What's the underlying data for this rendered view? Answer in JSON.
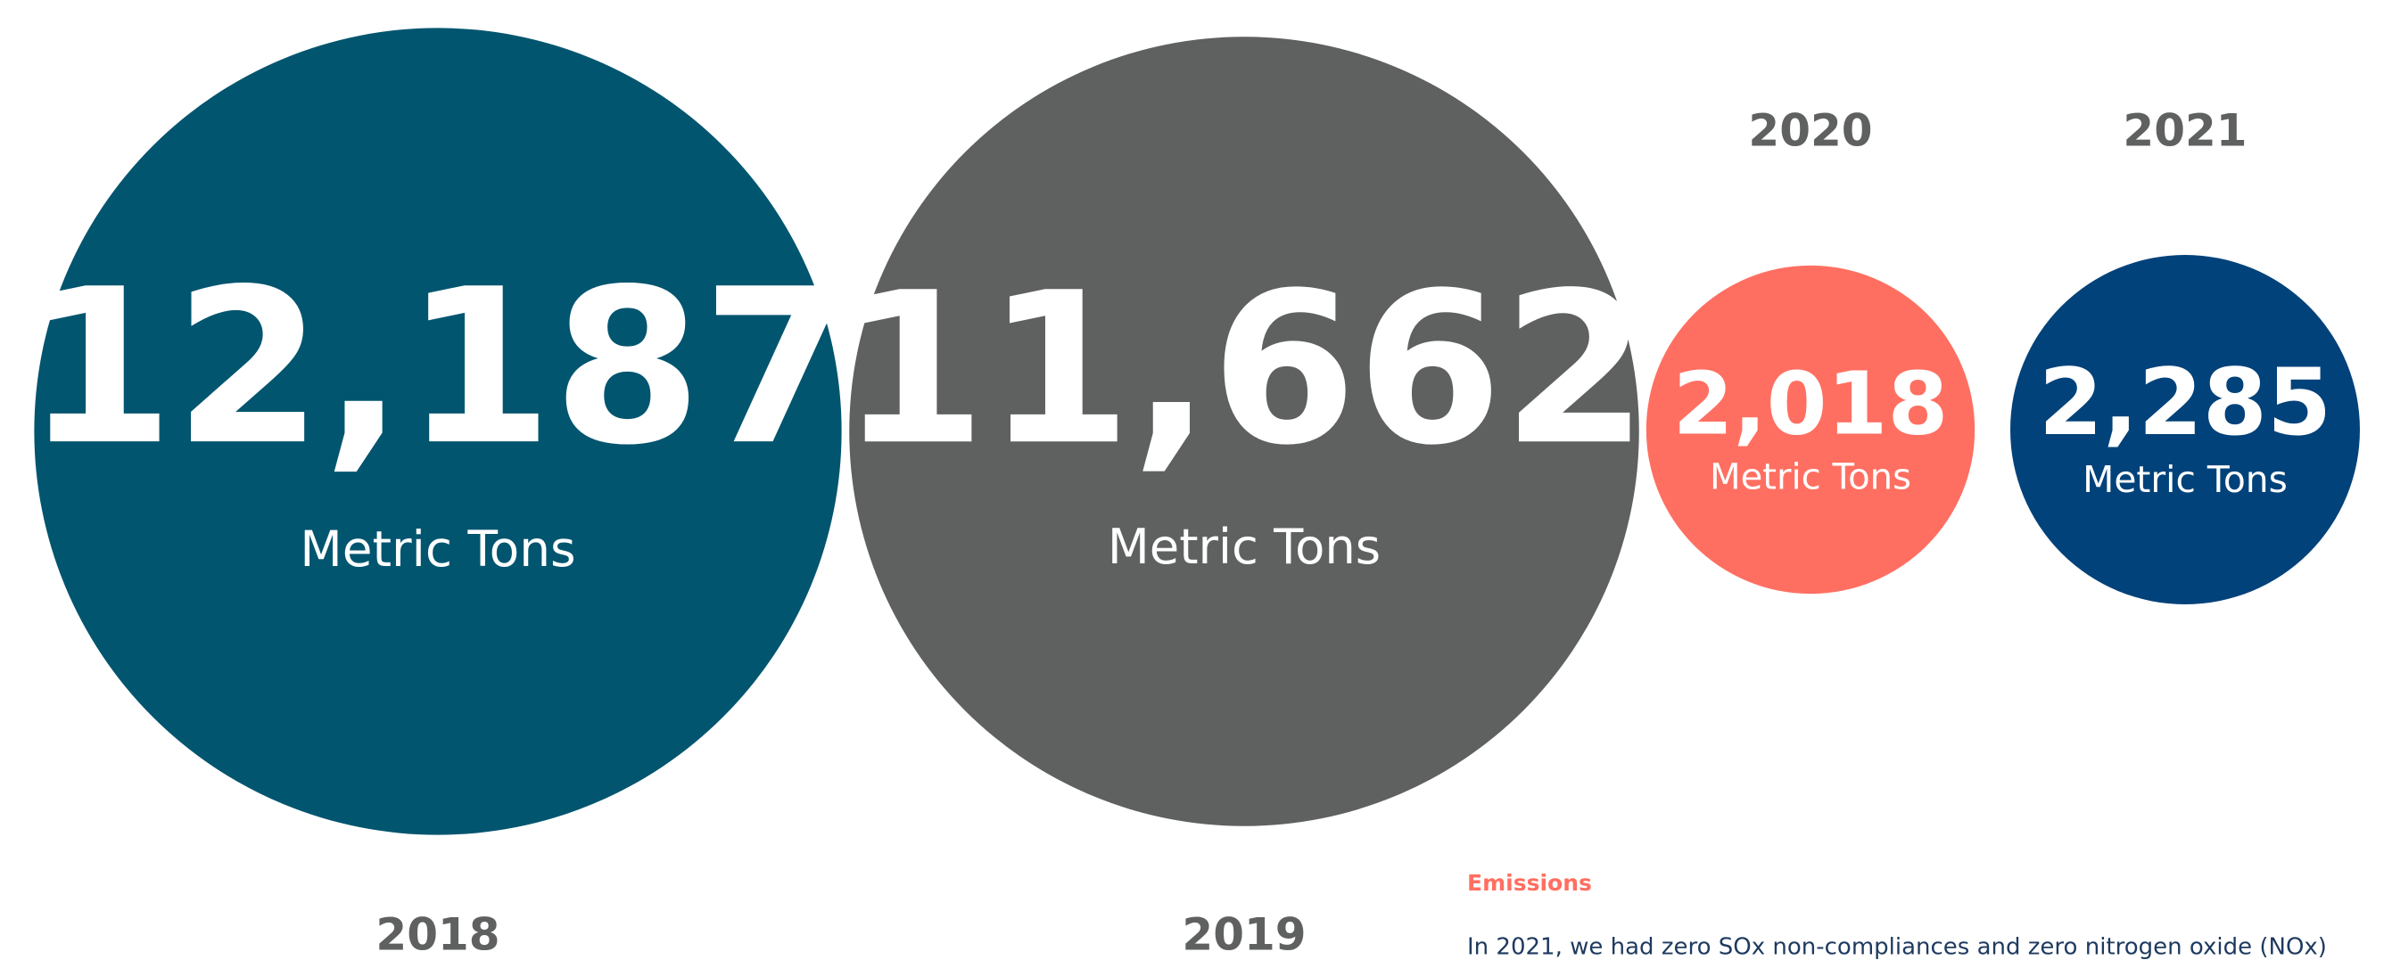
{
  "chart_data": {
    "type": "bubble",
    "categories": [
      "2018",
      "2019",
      "2020",
      "2021"
    ],
    "values": [
      12187,
      11662,
      2018,
      2285
    ],
    "value_labels": [
      "12,187",
      "11,662",
      "2,018",
      "2,285"
    ],
    "unit": "Metric Tons",
    "colors": [
      "#02556f",
      "#5f6060",
      "#ff6f61",
      "#02427a"
    ]
  },
  "section": {
    "heading": "Emissions",
    "text": "In 2021, we had zero SOx non-compliances and zero nitrogen oxide (NOx)"
  }
}
